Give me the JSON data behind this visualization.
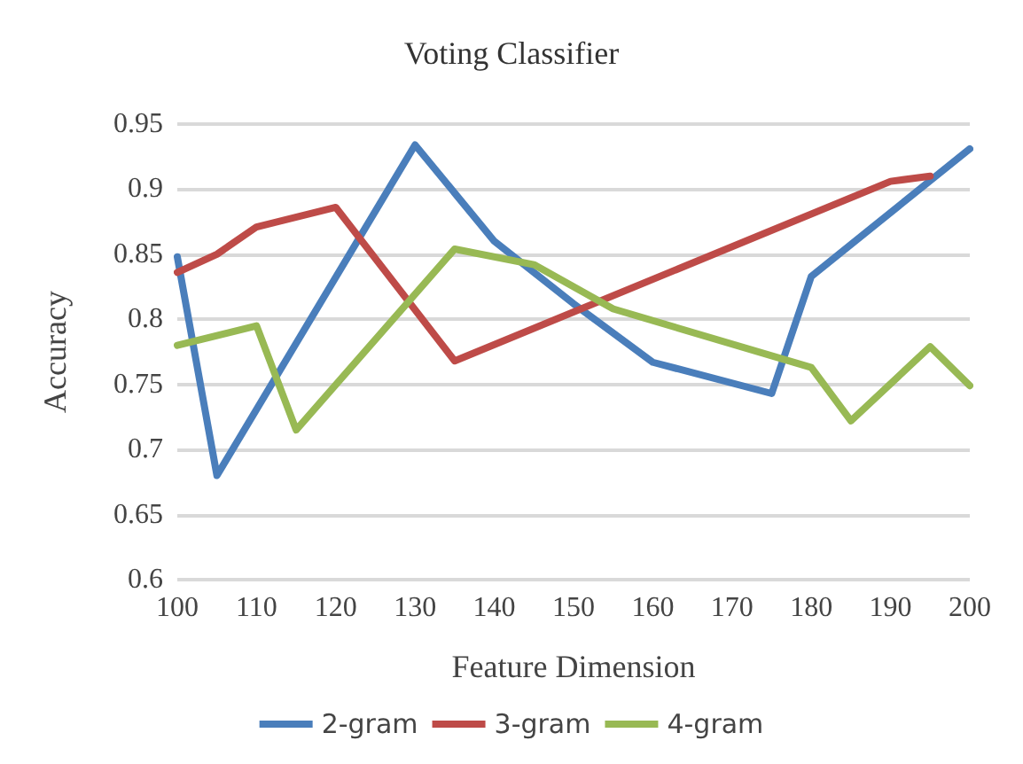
{
  "chart_data": {
    "type": "line",
    "title": "Voting Classifier",
    "xlabel": "Feature Dimension",
    "ylabel": "Accuracy",
    "xlim": [
      100,
      200
    ],
    "xticks": [
      100,
      110,
      120,
      130,
      140,
      150,
      160,
      170,
      180,
      190,
      200
    ],
    "ylim": [
      0.6,
      0.95
    ],
    "yticks": [
      0.6,
      0.65,
      0.7,
      0.75,
      0.8,
      0.85,
      0.9,
      0.95
    ],
    "grid": "y",
    "legend": "bottom",
    "marker": "none",
    "line_style": "solid",
    "series": [
      {
        "name": "2-gram",
        "color": "#4a7ebb",
        "x": [
          100,
          105,
          130,
          140,
          150,
          160,
          175,
          180,
          200
        ],
        "values": [
          0.848,
          0.68,
          0.934,
          0.86,
          0.812,
          0.767,
          0.743,
          0.833,
          0.931
        ]
      },
      {
        "name": "3-gram",
        "color": "#be4b48",
        "x": [
          100,
          105,
          110,
          120,
          135,
          190,
          195
        ],
        "values": [
          0.836,
          0.85,
          0.871,
          0.886,
          0.768,
          0.906,
          0.91
        ]
      },
      {
        "name": "4-gram",
        "color": "#98b954",
        "x": [
          100,
          110,
          115,
          135,
          145,
          155,
          180,
          185,
          195,
          200
        ],
        "values": [
          0.78,
          0.795,
          0.715,
          0.854,
          0.842,
          0.808,
          0.763,
          0.722,
          0.779,
          0.749
        ]
      }
    ]
  }
}
